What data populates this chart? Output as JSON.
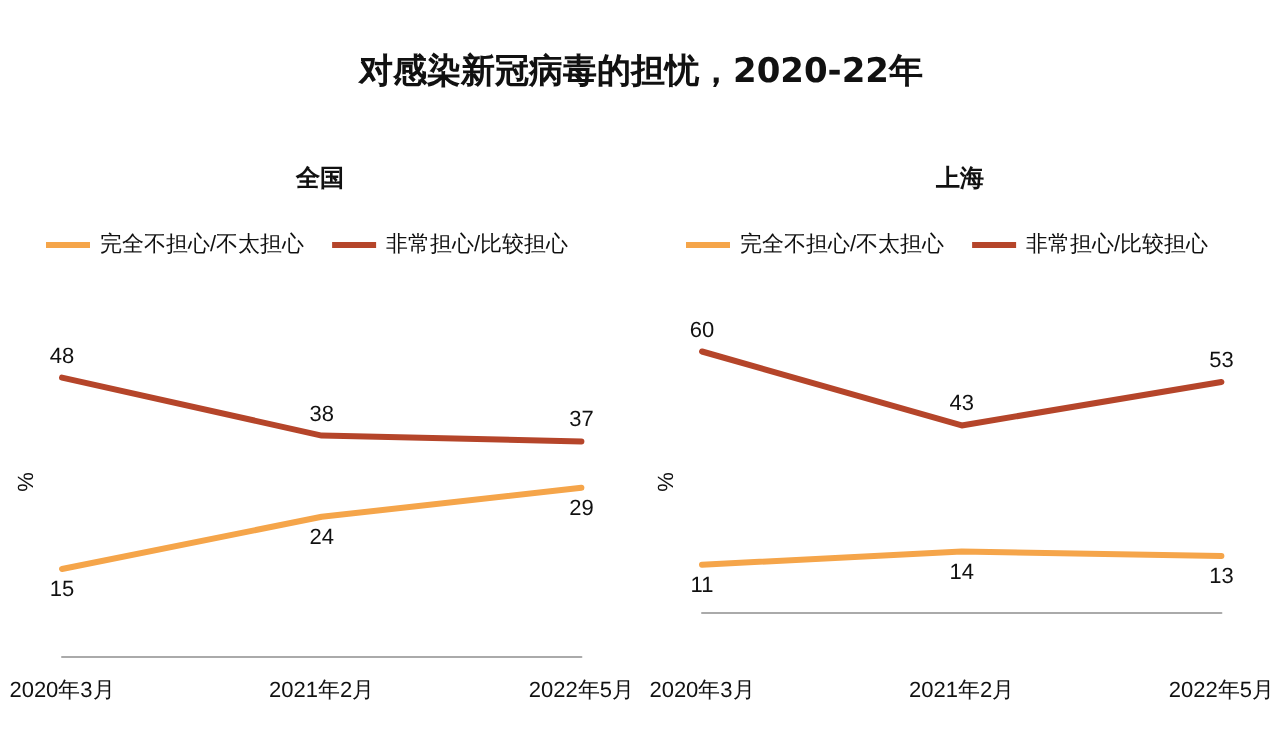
{
  "chart_data": [
    {
      "type": "line",
      "title": "对感染新冠病毒的担忧，2020-22年",
      "subtitle": "全国",
      "ylabel": "%",
      "categories": [
        "2020年3月",
        "2021年2月",
        "2022年5月"
      ],
      "tick_labels": "x",
      "legend": "top left",
      "marker": "none",
      "data_labels": true,
      "series": [
        {
          "name": "完全不担心/不太担心",
          "color": "#f5a54a",
          "values": [
            15,
            24,
            29
          ]
        },
        {
          "name": "非常担心/比较担心",
          "color": "#b5452a",
          "values": [
            48,
            38,
            37
          ]
        }
      ]
    },
    {
      "type": "line",
      "subtitle": "上海",
      "ylabel": "%",
      "categories": [
        "2020年3月",
        "2021年2月",
        "2022年5月"
      ],
      "tick_labels": "x",
      "legend": "top left",
      "marker": "none",
      "data_labels": true,
      "series": [
        {
          "name": "完全不担心/不太担心",
          "color": "#f5a54a",
          "values": [
            11,
            14,
            13
          ]
        },
        {
          "name": "非常担心/比较担心",
          "color": "#b5452a",
          "values": [
            60,
            43,
            53
          ]
        }
      ]
    }
  ]
}
